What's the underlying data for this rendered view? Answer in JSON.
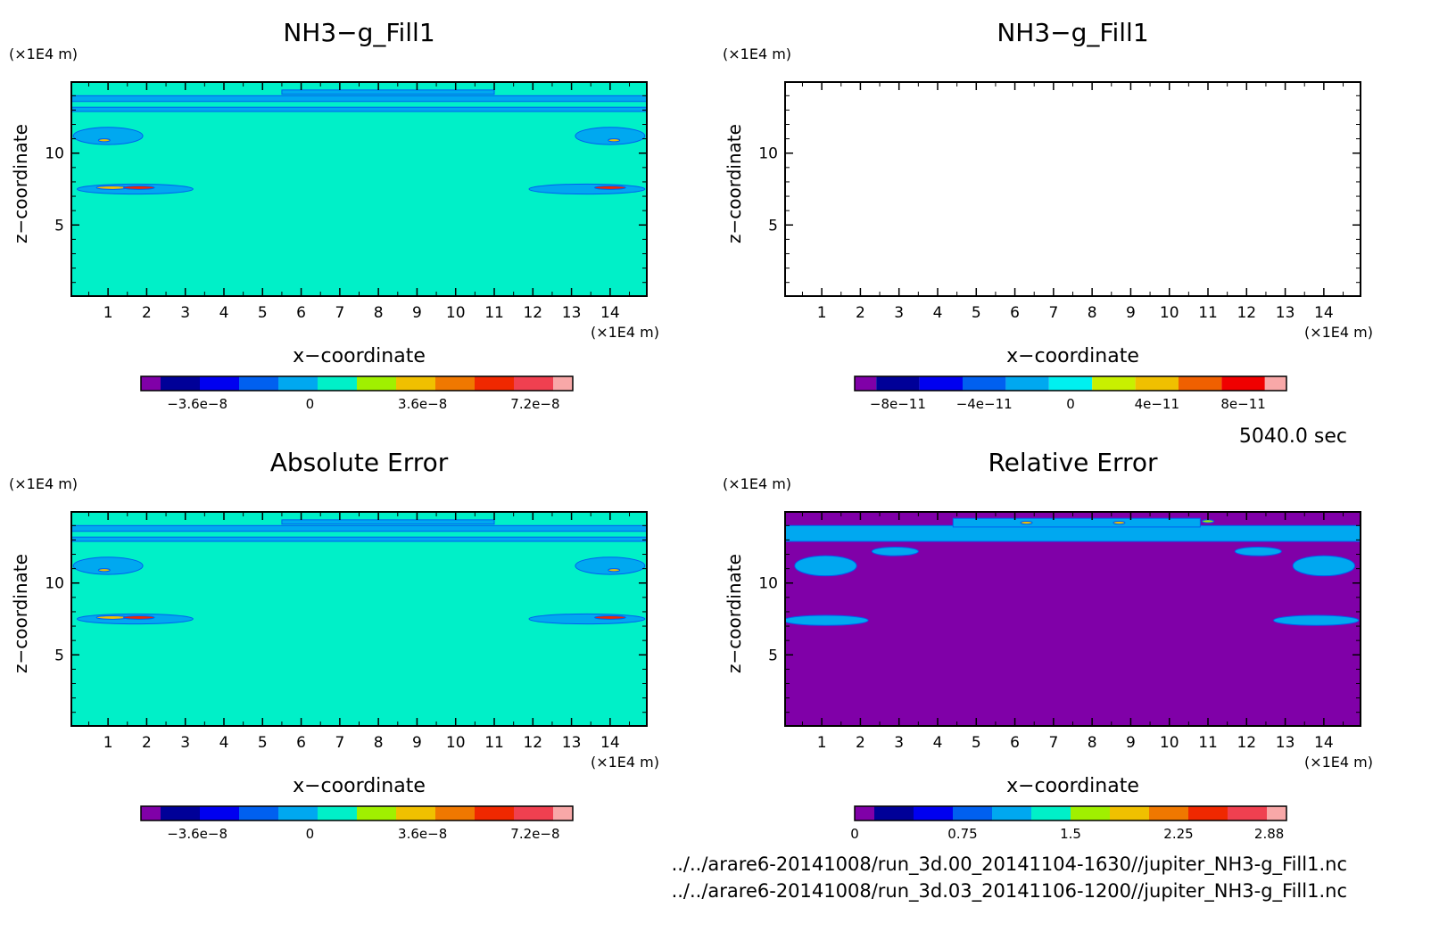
{
  "figure": {
    "time_label": "5040.0 sec",
    "file_paths": [
      "../../arare6-20141008/run_3d.00_20141104-1630//jupiter_NH3-g_Fill1.nc",
      "../../arare6-20141008/run_3d.03_20141106-1200//jupiter_NH3-g_Fill1.nc"
    ]
  },
  "chart_data": [
    {
      "type": "heatmap",
      "title": "NH3−g_Fill1",
      "xlabel": "x−coordinate",
      "ylabel": "z−coordinate",
      "x_unit": "(×1E4 m)",
      "y_unit": "(×1E4 m)",
      "xlim": [
        0.05,
        14.95
      ],
      "ylim": [
        0.05,
        14.95
      ],
      "x_ticks": [
        1,
        2,
        3,
        4,
        5,
        6,
        7,
        8,
        9,
        10,
        11,
        12,
        13,
        14
      ],
      "y_ticks": [
        5,
        10
      ],
      "background_color": "#00f0c8",
      "colorbar": {
        "colors": [
          "#8000a8",
          "#000098",
          "#0000f0",
          "#0060f0",
          "#00a8f0",
          "#00f0c8",
          "#a0f000",
          "#f0c000",
          "#f07800",
          "#f02800",
          "#f04050",
          "#f8a8a8"
        ],
        "tick_labels": [
          "−3.6e−8",
          "0",
          "3.6e−8",
          "7.2e−8"
        ],
        "tick_values": [
          -3.6e-08,
          0,
          3.6e-08,
          7.2e-08
        ],
        "range": [
          -5.4e-08,
          8.4e-08
        ]
      },
      "features": [
        {
          "kind": "band",
          "x": [
            0.05,
            14.95
          ],
          "z": [
            13.6,
            14.0
          ],
          "color": "#00a8f0"
        },
        {
          "kind": "band",
          "x": [
            0.05,
            14.95
          ],
          "z": [
            12.9,
            13.2
          ],
          "color": "#00a8f0"
        },
        {
          "kind": "band",
          "x": [
            5.5,
            11.0
          ],
          "z": [
            14.1,
            14.4
          ],
          "color": "#00a8f0"
        },
        {
          "kind": "blob",
          "x": 1.0,
          "z": 11.2,
          "rx": 0.9,
          "rz": 0.6,
          "color": "#00a8f0"
        },
        {
          "kind": "blob",
          "x": 14.0,
          "z": 11.2,
          "rx": 0.9,
          "rz": 0.6,
          "color": "#00a8f0"
        },
        {
          "kind": "blob",
          "x": 1.7,
          "z": 7.5,
          "rx": 1.5,
          "rz": 0.35,
          "color": "#00a8f0"
        },
        {
          "kind": "blob",
          "x": 13.4,
          "z": 7.5,
          "rx": 1.5,
          "rz": 0.35,
          "color": "#00a8f0"
        },
        {
          "kind": "blob",
          "x": 1.1,
          "z": 7.6,
          "rx": 0.4,
          "rz": 0.12,
          "color": "#f0c000"
        },
        {
          "kind": "blob",
          "x": 1.8,
          "z": 7.6,
          "rx": 0.4,
          "rz": 0.12,
          "color": "#f02800"
        },
        {
          "kind": "blob",
          "x": 14.0,
          "z": 7.6,
          "rx": 0.4,
          "rz": 0.12,
          "color": "#f02800"
        },
        {
          "kind": "blob",
          "x": 0.9,
          "z": 10.9,
          "rx": 0.15,
          "rz": 0.1,
          "color": "#f0c000"
        },
        {
          "kind": "blob",
          "x": 14.1,
          "z": 10.9,
          "rx": 0.15,
          "rz": 0.1,
          "color": "#f0c000"
        }
      ]
    },
    {
      "type": "heatmap",
      "title": "NH3−g_Fill1",
      "xlabel": "x−coordinate",
      "ylabel": "z−coordinate",
      "x_unit": "(×1E4 m)",
      "y_unit": "(×1E4 m)",
      "xlim": [
        0.05,
        14.95
      ],
      "ylim": [
        0.05,
        14.95
      ],
      "x_ticks": [
        1,
        2,
        3,
        4,
        5,
        6,
        7,
        8,
        9,
        10,
        11,
        12,
        13,
        14
      ],
      "y_ticks": [
        5,
        10
      ],
      "background_color": "#ffffff",
      "colorbar": {
        "colors": [
          "#8000a8",
          "#000098",
          "#0000f0",
          "#0060f0",
          "#00a8f0",
          "#00f0f0",
          "#c8f000",
          "#f0c000",
          "#f06000",
          "#f00000",
          "#f8a8a8"
        ],
        "tick_labels": [
          "−8e−11",
          "−4e−11",
          "0",
          "4e−11",
          "8e−11"
        ],
        "tick_values": [
          -8e-11,
          -4e-11,
          0,
          4e-11,
          8e-11
        ],
        "range": [
          -1e-10,
          1e-10
        ]
      },
      "features": []
    },
    {
      "type": "heatmap",
      "title": "Absolute Error",
      "xlabel": "x−coordinate",
      "ylabel": "z−coordinate",
      "x_unit": "(×1E4 m)",
      "y_unit": "(×1E4 m)",
      "xlim": [
        0.05,
        14.95
      ],
      "ylim": [
        0.05,
        14.95
      ],
      "x_ticks": [
        1,
        2,
        3,
        4,
        5,
        6,
        7,
        8,
        9,
        10,
        11,
        12,
        13,
        14
      ],
      "y_ticks": [
        5,
        10
      ],
      "background_color": "#00f0c8",
      "colorbar": {
        "colors": [
          "#8000a8",
          "#000098",
          "#0000f0",
          "#0060f0",
          "#00a8f0",
          "#00f0c8",
          "#a0f000",
          "#f0c000",
          "#f07800",
          "#f02800",
          "#f04050",
          "#f8a8a8"
        ],
        "tick_labels": [
          "−3.6e−8",
          "0",
          "3.6e−8",
          "7.2e−8"
        ],
        "tick_values": [
          -3.6e-08,
          0,
          3.6e-08,
          7.2e-08
        ],
        "range": [
          -5.4e-08,
          8.4e-08
        ]
      },
      "features": [
        {
          "kind": "band",
          "x": [
            0.05,
            14.95
          ],
          "z": [
            13.6,
            14.0
          ],
          "color": "#00a8f0"
        },
        {
          "kind": "band",
          "x": [
            0.05,
            14.95
          ],
          "z": [
            12.9,
            13.2
          ],
          "color": "#00a8f0"
        },
        {
          "kind": "band",
          "x": [
            5.5,
            11.0
          ],
          "z": [
            14.1,
            14.4
          ],
          "color": "#00a8f0"
        },
        {
          "kind": "blob",
          "x": 1.0,
          "z": 11.2,
          "rx": 0.9,
          "rz": 0.6,
          "color": "#00a8f0"
        },
        {
          "kind": "blob",
          "x": 14.0,
          "z": 11.2,
          "rx": 0.9,
          "rz": 0.6,
          "color": "#00a8f0"
        },
        {
          "kind": "blob",
          "x": 1.7,
          "z": 7.5,
          "rx": 1.5,
          "rz": 0.35,
          "color": "#00a8f0"
        },
        {
          "kind": "blob",
          "x": 13.4,
          "z": 7.5,
          "rx": 1.5,
          "rz": 0.35,
          "color": "#00a8f0"
        },
        {
          "kind": "blob",
          "x": 1.1,
          "z": 7.6,
          "rx": 0.4,
          "rz": 0.12,
          "color": "#f0c000"
        },
        {
          "kind": "blob",
          "x": 1.8,
          "z": 7.6,
          "rx": 0.4,
          "rz": 0.12,
          "color": "#f02800"
        },
        {
          "kind": "blob",
          "x": 14.0,
          "z": 7.6,
          "rx": 0.4,
          "rz": 0.12,
          "color": "#f02800"
        },
        {
          "kind": "blob",
          "x": 0.9,
          "z": 10.9,
          "rx": 0.15,
          "rz": 0.1,
          "color": "#f0c000"
        },
        {
          "kind": "blob",
          "x": 14.1,
          "z": 10.9,
          "rx": 0.15,
          "rz": 0.1,
          "color": "#f0c000"
        }
      ]
    },
    {
      "type": "heatmap",
      "title": "Relative Error",
      "xlabel": "x−coordinate",
      "ylabel": "z−coordinate",
      "x_unit": "(×1E4 m)",
      "y_unit": "(×1E4 m)",
      "xlim": [
        0.05,
        14.95
      ],
      "ylim": [
        0.05,
        14.95
      ],
      "x_ticks": [
        1,
        2,
        3,
        4,
        5,
        6,
        7,
        8,
        9,
        10,
        11,
        12,
        13,
        14
      ],
      "y_ticks": [
        5,
        10
      ],
      "background_color": "#8000a8",
      "colorbar": {
        "colors": [
          "#8000a8",
          "#000098",
          "#0000f0",
          "#0060f0",
          "#00a8f0",
          "#00f0c8",
          "#a0f000",
          "#f0c000",
          "#f07800",
          "#f02800",
          "#f04050",
          "#f8a8a8"
        ],
        "tick_labels": [
          "0",
          "0.75",
          "1.5",
          "2.25",
          "2.88"
        ],
        "tick_values": [
          0,
          0.75,
          1.5,
          2.25,
          2.88
        ],
        "range": [
          0,
          3.0
        ]
      },
      "features": [
        {
          "kind": "band",
          "x": [
            0.05,
            14.95
          ],
          "z": [
            12.9,
            14.0
          ],
          "color": "#00a8f0"
        },
        {
          "kind": "band",
          "x": [
            4.4,
            10.8
          ],
          "z": [
            13.9,
            14.5
          ],
          "color": "#00a8f0"
        },
        {
          "kind": "blob",
          "x": 1.1,
          "z": 11.2,
          "rx": 0.8,
          "rz": 0.7,
          "color": "#00a8f0"
        },
        {
          "kind": "blob",
          "x": 14.0,
          "z": 11.2,
          "rx": 0.8,
          "rz": 0.7,
          "color": "#00a8f0"
        },
        {
          "kind": "blob",
          "x": 2.9,
          "z": 12.2,
          "rx": 0.6,
          "rz": 0.3,
          "color": "#00a8f0"
        },
        {
          "kind": "blob",
          "x": 12.3,
          "z": 12.2,
          "rx": 0.6,
          "rz": 0.3,
          "color": "#00a8f0"
        },
        {
          "kind": "blob",
          "x": 1.1,
          "z": 7.4,
          "rx": 1.1,
          "rz": 0.35,
          "color": "#00a8f0"
        },
        {
          "kind": "blob",
          "x": 13.8,
          "z": 7.4,
          "rx": 1.1,
          "rz": 0.35,
          "color": "#00a8f0"
        },
        {
          "kind": "blob",
          "x": 6.3,
          "z": 14.2,
          "rx": 0.15,
          "rz": 0.1,
          "color": "#f0c000"
        },
        {
          "kind": "blob",
          "x": 8.7,
          "z": 14.2,
          "rx": 0.15,
          "rz": 0.1,
          "color": "#f0c000"
        },
        {
          "kind": "blob",
          "x": 11.0,
          "z": 14.3,
          "rx": 0.15,
          "rz": 0.1,
          "color": "#a0f000"
        }
      ]
    }
  ]
}
